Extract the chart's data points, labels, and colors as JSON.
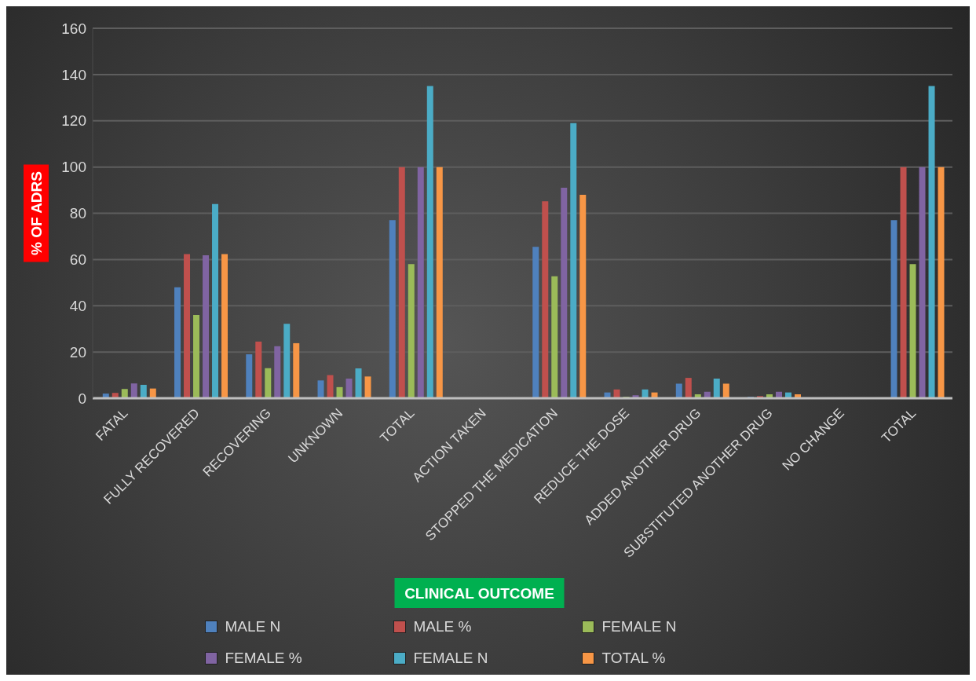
{
  "chart_data": {
    "type": "bar",
    "xlabel": "CLINICAL OUTCOME",
    "ylabel": "% OF ADRS",
    "categories": [
      "FATAL",
      "FULLY RECOVERED",
      "RECOVERING",
      "UNKNOWN",
      "TOTAL",
      "ACTION TAKEN",
      "STOPPED THE MEDICATION",
      "REDUCE THE DOSE",
      "ADDED ANOTHER DRUG",
      "SUBSTITUTED ANOTHER DRUG",
      "NO CHANGE",
      "TOTAL"
    ],
    "series": [
      {
        "name": "MALE N",
        "color": "#4f81bd",
        "values": [
          2,
          48,
          19,
          7.7,
          77,
          null,
          65.5,
          2.5,
          6.3,
          0.6,
          0,
          77
        ]
      },
      {
        "name": "MALE %",
        "color": "#c0504d",
        "values": [
          2.3,
          62.3,
          24.5,
          10,
          100,
          null,
          85.2,
          3.8,
          8.8,
          0.9,
          0,
          100
        ]
      },
      {
        "name": "FEMALE N",
        "color": "#9bbb59",
        "values": [
          4,
          36,
          13,
          4.8,
          58,
          null,
          52.7,
          0.6,
          1.7,
          1.7,
          0,
          58
        ]
      },
      {
        "name": "FEMALE %",
        "color": "#8064a2",
        "values": [
          6.4,
          61.8,
          22.5,
          8.5,
          100,
          null,
          91,
          1.3,
          2.8,
          2.8,
          0,
          100
        ]
      },
      {
        "name": "FEMALE N",
        "color": "#4bacc6",
        "values": [
          5.8,
          84,
          32.2,
          12.9,
          135,
          null,
          119,
          3.8,
          8.5,
          2.5,
          0,
          135
        ]
      },
      {
        "name": "TOTAL %",
        "color": "#f79646",
        "values": [
          4.2,
          62.3,
          23.8,
          9.4,
          100,
          null,
          88,
          2.5,
          6.3,
          1.7,
          0,
          100
        ]
      }
    ],
    "ylim": [
      0,
      160
    ],
    "yticks": [
      0,
      20,
      40,
      60,
      80,
      100,
      120,
      140,
      160
    ],
    "grid": "y",
    "legend": "bottom"
  }
}
